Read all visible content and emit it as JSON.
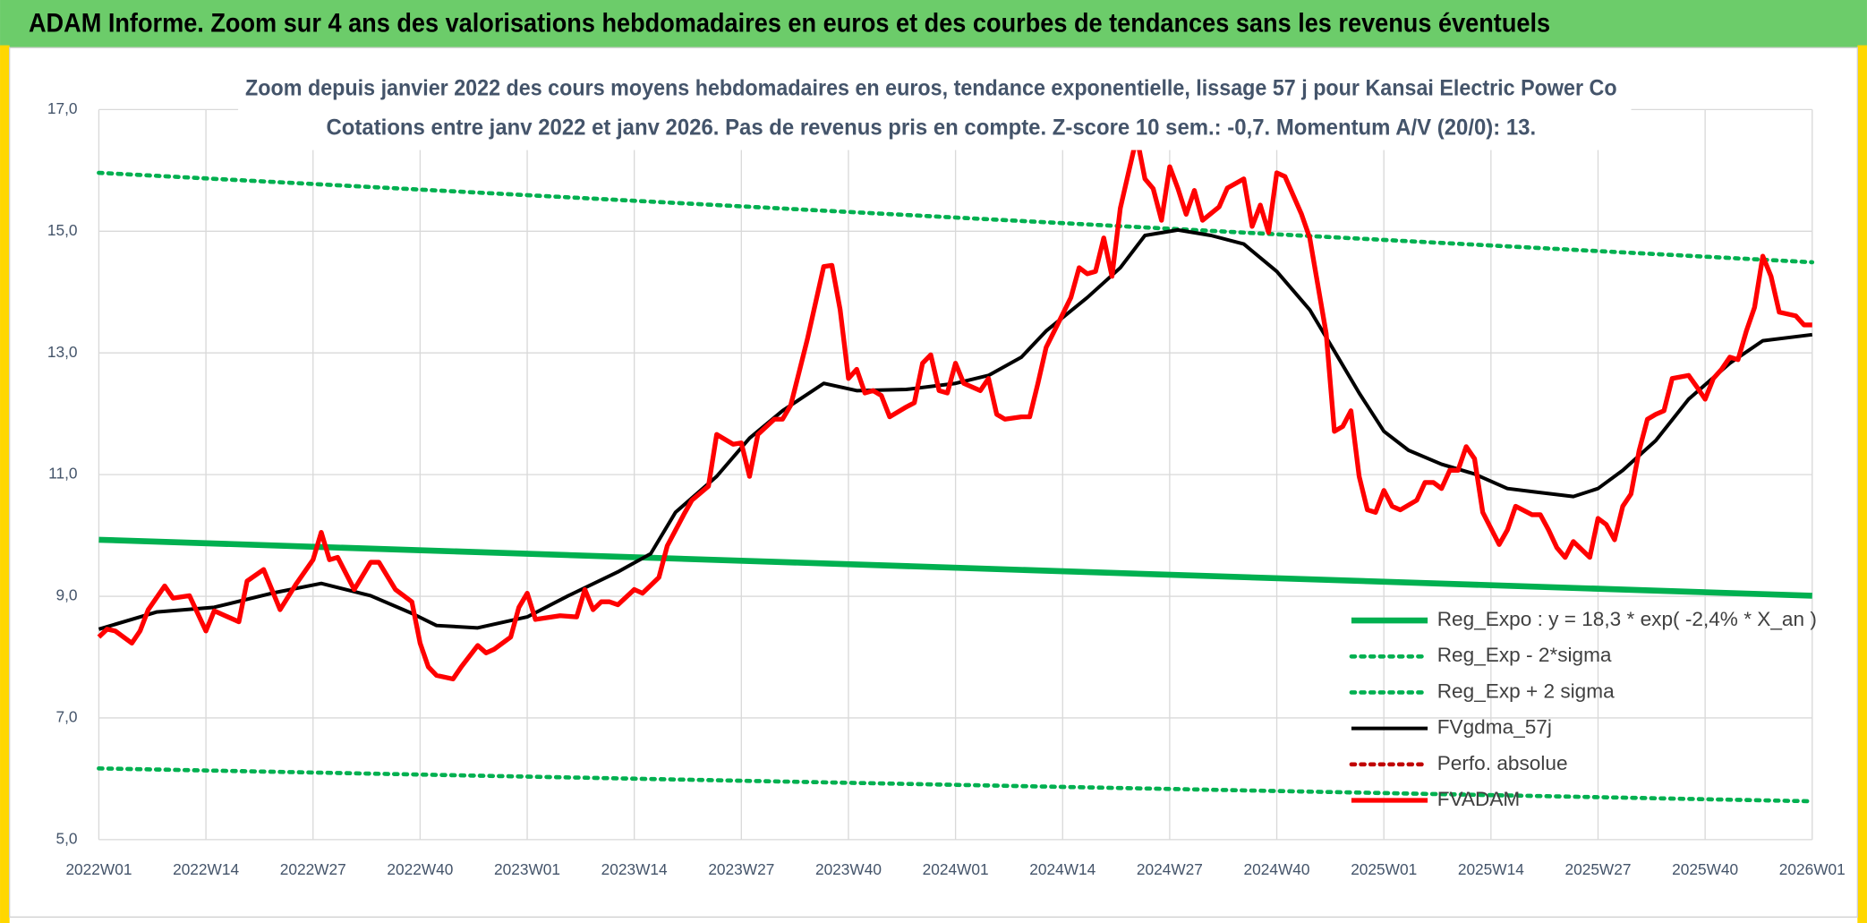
{
  "header": {
    "title": "ADAM Informe. Zoom sur 4 ans des valorisations hebdomadaires en euros et des courbes de tendances sans les revenus éventuels"
  },
  "chart_data": {
    "type": "line",
    "title": "Zoom depuis janvier 2022 des cours moyens hebdomadaires en euros, tendance exponentielle, lissage 57 j pour Kansai Electric Power Co",
    "subtitle": "Cotations entre janv 2022 et janv 2026. Pas de revenus pris en compte. Z-score 10 sem.: -0,7. Momentum A/V (20/0): 13.",
    "xlim": [
      0,
      208
    ],
    "xticks": [
      {
        "value": 0,
        "label": "2022W01"
      },
      {
        "value": 13,
        "label": "2022W14"
      },
      {
        "value": 26,
        "label": "2022W27"
      },
      {
        "value": 39,
        "label": "2022W40"
      },
      {
        "value": 52,
        "label": "2023W01"
      },
      {
        "value": 65,
        "label": "2023W14"
      },
      {
        "value": 78,
        "label": "2023W27"
      },
      {
        "value": 91,
        "label": "2023W40"
      },
      {
        "value": 104,
        "label": "2024W01"
      },
      {
        "value": 117,
        "label": "2024W14"
      },
      {
        "value": 130,
        "label": "2024W27"
      },
      {
        "value": 143,
        "label": "2024W40"
      },
      {
        "value": 156,
        "label": "2025W01"
      },
      {
        "value": 169,
        "label": "2025W14"
      },
      {
        "value": 182,
        "label": "2025W27"
      },
      {
        "value": 195,
        "label": "2025W40"
      },
      {
        "value": 208,
        "label": "2026W01"
      }
    ],
    "ylim": [
      5,
      17
    ],
    "yticks": [
      {
        "value": 5,
        "label": "5,0"
      },
      {
        "value": 7,
        "label": "7,0"
      },
      {
        "value": 9,
        "label": "9,0"
      },
      {
        "value": 11,
        "label": "11,0"
      },
      {
        "value": 13,
        "label": "13,0"
      },
      {
        "value": 15,
        "label": "15,0"
      },
      {
        "value": 17,
        "label": "17,0"
      }
    ],
    "grid": true,
    "legend": "lower right",
    "series": [
      {
        "name": "Reg_Expo : y = 18,3 * exp( -2,4% *  X_an )",
        "color": "#00b050",
        "line_style": "solid",
        "x": [
          0,
          208
        ],
        "values": [
          9.93,
          9.01
        ]
      },
      {
        "name": "Reg_Exp - 2*sigma",
        "color": "#00b050",
        "line_style": "dotted",
        "x": [
          0,
          208
        ],
        "values": [
          6.17,
          5.63
        ]
      },
      {
        "name": "Reg_Exp + 2 sigma",
        "color": "#00b050",
        "line_style": "dotted",
        "x": [
          0,
          208
        ],
        "values": [
          15.96,
          14.49
        ]
      },
      {
        "name": "FVgdma_57j",
        "color": "#000000",
        "line_style": "solid",
        "x": [
          0,
          7,
          14,
          21,
          27,
          33,
          38,
          41,
          46,
          52,
          57,
          63,
          67,
          70,
          75,
          79,
          83,
          88,
          92,
          98,
          104,
          108,
          112,
          115,
          120,
          124,
          127,
          131,
          135,
          139,
          143,
          147,
          150,
          153,
          156,
          159,
          163,
          167,
          171,
          174,
          179,
          182,
          185,
          189,
          193,
          198,
          202,
          208
        ],
        "values": [
          8.46,
          8.74,
          8.82,
          9.05,
          9.21,
          9.01,
          8.72,
          8.52,
          8.48,
          8.66,
          9.01,
          9.4,
          9.7,
          10.38,
          10.97,
          11.6,
          12.05,
          12.5,
          12.38,
          12.4,
          12.5,
          12.63,
          12.93,
          13.36,
          13.91,
          14.4,
          14.93,
          15.02,
          14.93,
          14.79,
          14.34,
          13.71,
          13.03,
          12.34,
          11.71,
          11.4,
          11.17,
          11.01,
          10.77,
          10.72,
          10.64,
          10.77,
          11.07,
          11.56,
          12.24,
          12.83,
          13.2,
          13.3
        ]
      },
      {
        "name": "Perfo. absolue",
        "color": "#c00000",
        "line_style": "dotted",
        "x": [],
        "values": []
      },
      {
        "name": "FVADAM",
        "color": "#ff0000",
        "line_style": "solid",
        "x": [
          0,
          1,
          2,
          4,
          5,
          6,
          8,
          9,
          11,
          13,
          14,
          17,
          18,
          20,
          22,
          24,
          26,
          27,
          28,
          29,
          31,
          33,
          34,
          36,
          38,
          39,
          40,
          41,
          43,
          44,
          46,
          47,
          48,
          50,
          51,
          52,
          53,
          55,
          56,
          58,
          59,
          60,
          61,
          62,
          63,
          65,
          66,
          68,
          69,
          71,
          72,
          74,
          75,
          77,
          78,
          79,
          80,
          82,
          83,
          84,
          86,
          88,
          89,
          90,
          91,
          92,
          93,
          94,
          95,
          96,
          98,
          99,
          100,
          101,
          102,
          103,
          104,
          105,
          107,
          108,
          109,
          110,
          112,
          113,
          114,
          115,
          116,
          118,
          119,
          120,
          121,
          122,
          123,
          124,
          126,
          127,
          128,
          129,
          130,
          131,
          132,
          133,
          134,
          136,
          137,
          139,
          140,
          141,
          142,
          143,
          144,
          146,
          147,
          149,
          150,
          151,
          152,
          153,
          154,
          155,
          156,
          157,
          158,
          160,
          161,
          162,
          163,
          164,
          165,
          166,
          167,
          168,
          170,
          171,
          172,
          174,
          175,
          176,
          177,
          178,
          179,
          181,
          182,
          183,
          184,
          185,
          186,
          187,
          188,
          189,
          190,
          191,
          193,
          194,
          195,
          196,
          197,
          198,
          199,
          200,
          201,
          202,
          203,
          204,
          206,
          207,
          208
        ],
        "values": [
          8.33,
          8.46,
          8.43,
          8.23,
          8.43,
          8.78,
          9.17,
          8.97,
          9.01,
          8.43,
          8.76,
          8.58,
          9.25,
          9.44,
          8.78,
          9.21,
          9.6,
          10.05,
          9.6,
          9.64,
          9.11,
          9.56,
          9.56,
          9.11,
          8.91,
          8.23,
          7.84,
          7.7,
          7.64,
          7.84,
          8.19,
          8.07,
          8.13,
          8.33,
          8.82,
          9.05,
          8.62,
          8.66,
          8.68,
          8.66,
          9.11,
          8.78,
          8.91,
          8.91,
          8.86,
          9.11,
          9.05,
          9.31,
          9.83,
          10.34,
          10.58,
          10.81,
          11.66,
          11.5,
          11.52,
          10.97,
          11.66,
          11.91,
          11.91,
          12.14,
          13.22,
          14.42,
          14.44,
          13.71,
          12.58,
          12.73,
          12.34,
          12.38,
          12.3,
          11.95,
          12.11,
          12.18,
          12.83,
          12.97,
          12.38,
          12.34,
          12.83,
          12.5,
          12.38,
          12.58,
          11.99,
          11.91,
          11.95,
          11.95,
          12.5,
          13.09,
          13.36,
          13.91,
          14.4,
          14.3,
          14.34,
          14.89,
          14.26,
          15.38,
          16.55,
          15.86,
          15.7,
          15.18,
          16.06,
          15.7,
          15.28,
          15.67,
          15.18,
          15.4,
          15.71,
          15.86,
          15.08,
          15.43,
          14.98,
          15.96,
          15.9,
          15.28,
          14.89,
          13.32,
          11.71,
          11.79,
          12.05,
          10.97,
          10.42,
          10.38,
          10.74,
          10.48,
          10.42,
          10.58,
          10.87,
          10.87,
          10.77,
          11.07,
          11.07,
          11.46,
          11.26,
          10.38,
          9.85,
          10.09,
          10.48,
          10.34,
          10.34,
          10.09,
          9.8,
          9.64,
          9.9,
          9.64,
          10.28,
          10.18,
          9.93,
          10.48,
          10.68,
          11.4,
          11.91,
          11.99,
          12.05,
          12.58,
          12.63,
          12.44,
          12.24,
          12.58,
          12.73,
          12.93,
          12.89,
          13.36,
          13.75,
          14.59,
          14.26,
          13.67,
          13.61,
          13.46,
          13.46
        ]
      }
    ]
  }
}
